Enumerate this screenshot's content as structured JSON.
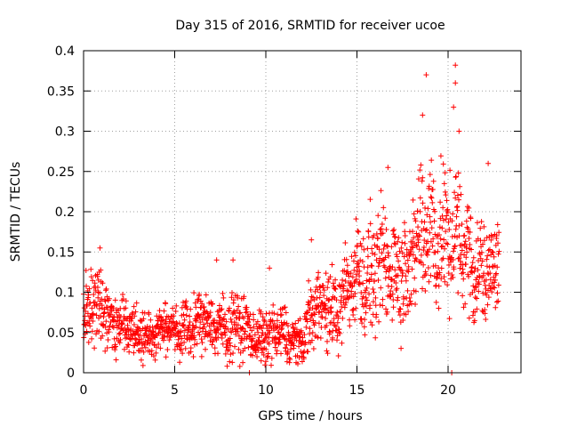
{
  "chart_data": {
    "type": "scatter",
    "title": "Day 315 of 2016, SRMTID for receiver ucoe",
    "xlabel": "GPS time / hours",
    "ylabel": "SRMTID / TECUs",
    "xlim": [
      0,
      24
    ],
    "ylim": [
      0,
      0.4
    ],
    "xticks": [
      0,
      5,
      10,
      15,
      20
    ],
    "xtick_labels": [
      "0",
      "5",
      "10",
      "15",
      "20"
    ],
    "yticks": [
      0,
      0.05,
      0.1,
      0.15,
      0.2,
      0.25,
      0.3,
      0.35,
      0.4
    ],
    "ytick_labels": [
      "0",
      "0.05",
      "0.1",
      "0.15",
      "0.2",
      "0.25",
      "0.3",
      "0.35",
      "0.4"
    ],
    "grid": true,
    "marker": "plus",
    "marker_color": "#ff0000",
    "data_x_max": 22.8,
    "series": [
      {
        "name": "SRMTID",
        "envelope": {
          "hours": [
            0,
            0.5,
            1,
            1.5,
            2,
            3,
            4,
            5,
            6,
            7,
            8,
            9,
            10,
            11,
            12,
            12.5,
            13,
            14,
            15,
            16,
            17,
            18,
            18.8,
            19.5,
            20,
            20.5,
            21,
            22,
            22.8
          ],
          "mean": [
            0.075,
            0.08,
            0.085,
            0.07,
            0.06,
            0.05,
            0.05,
            0.055,
            0.06,
            0.06,
            0.06,
            0.05,
            0.045,
            0.045,
            0.04,
            0.065,
            0.085,
            0.08,
            0.12,
            0.13,
            0.12,
            0.15,
            0.17,
            0.17,
            0.18,
            0.16,
            0.14,
            0.13,
            0.13
          ],
          "spread": [
            0.025,
            0.03,
            0.03,
            0.025,
            0.02,
            0.018,
            0.018,
            0.02,
            0.02,
            0.022,
            0.025,
            0.02,
            0.02,
            0.02,
            0.015,
            0.025,
            0.03,
            0.03,
            0.035,
            0.045,
            0.04,
            0.045,
            0.055,
            0.05,
            0.05,
            0.05,
            0.04,
            0.04,
            0.035
          ]
        },
        "samples": 1700,
        "peaks": [
          {
            "x": 0.9,
            "y": 0.155
          },
          {
            "x": 7.3,
            "y": 0.14
          },
          {
            "x": 8.2,
            "y": 0.14
          },
          {
            "x": 10.2,
            "y": 0.13
          },
          {
            "x": 12.5,
            "y": 0.165
          },
          {
            "x": 16.7,
            "y": 0.255
          },
          {
            "x": 18.8,
            "y": 0.37
          },
          {
            "x": 18.6,
            "y": 0.32
          },
          {
            "x": 20.4,
            "y": 0.382
          },
          {
            "x": 20.4,
            "y": 0.36
          },
          {
            "x": 20.6,
            "y": 0.3
          },
          {
            "x": 20.3,
            "y": 0.33
          },
          {
            "x": 22.2,
            "y": 0.26
          },
          {
            "x": 9.1,
            "y": 0.0
          },
          {
            "x": 20.2,
            "y": 0.0
          }
        ]
      }
    ]
  }
}
